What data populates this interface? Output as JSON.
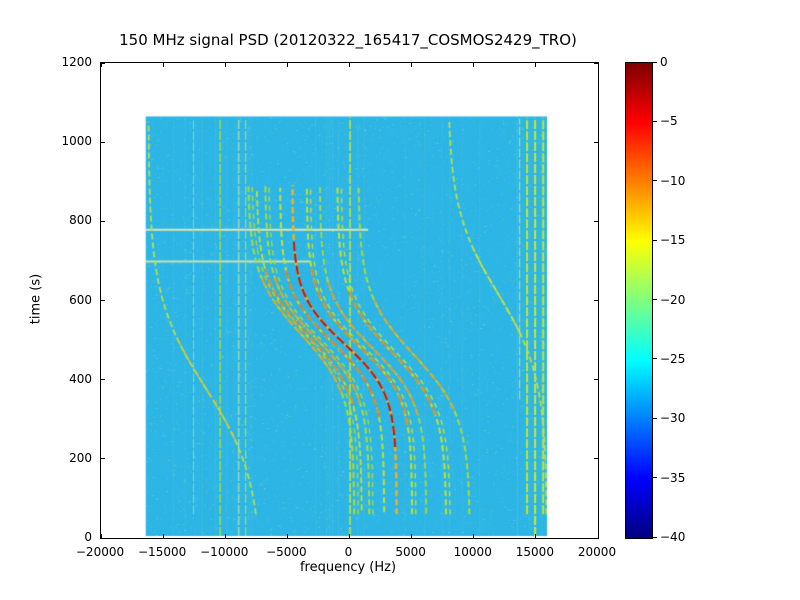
{
  "chart_data": {
    "type": "heatmap",
    "title": "150 MHz signal PSD (20120322_165417_COSMOS2429_TRO)",
    "xlabel": "frequency (Hz)",
    "ylabel": "time (s)",
    "xlim": [
      -20000,
      20000
    ],
    "ylim": [
      0,
      1200
    ],
    "grid": false,
    "xticks": [
      {
        "v": -20000,
        "label": "−20000"
      },
      {
        "v": -15000,
        "label": "−15000"
      },
      {
        "v": -10000,
        "label": "−10000"
      },
      {
        "v": -5000,
        "label": "−5000"
      },
      {
        "v": 0,
        "label": "0"
      },
      {
        "v": 5000,
        "label": "5000"
      },
      {
        "v": 10000,
        "label": "10000"
      },
      {
        "v": 15000,
        "label": "15000"
      },
      {
        "v": 20000,
        "label": "20000"
      }
    ],
    "yticks": [
      {
        "v": 0,
        "label": "0"
      },
      {
        "v": 200,
        "label": "200"
      },
      {
        "v": 400,
        "label": "400"
      },
      {
        "v": 600,
        "label": "600"
      },
      {
        "v": 800,
        "label": "800"
      },
      {
        "v": 1000,
        "label": "1000"
      },
      {
        "v": 1200,
        "label": "1200"
      }
    ],
    "colorbar": {
      "colormap": "jet",
      "min": -40,
      "max": 0,
      "ticks": [
        {
          "v": 0,
          "label": "0"
        },
        {
          "v": -5,
          "label": "−5"
        },
        {
          "v": -10,
          "label": "−10"
        },
        {
          "v": -15,
          "label": "−15"
        },
        {
          "v": -20,
          "label": "−20"
        },
        {
          "v": -25,
          "label": "−25"
        },
        {
          "v": -30,
          "label": "−30"
        },
        {
          "v": -35,
          "label": "−35"
        },
        {
          "v": -40,
          "label": "−40"
        }
      ],
      "jet_stops": [
        "#7f0000",
        "#ff0000",
        "#ff7f00",
        "#ffff00",
        "#7fff7f",
        "#00ffff",
        "#007fff",
        "#0000ff",
        "#00007f"
      ]
    },
    "extent": {
      "freq": [
        -16400,
        15900
      ],
      "time": [
        5,
        1065
      ]
    },
    "background_db": -28,
    "colors": {
      "background": "#2cb5e5",
      "axes_edge": "#000000",
      "figure_bg": "#ffffff"
    },
    "traces": [
      {
        "offset": -3900,
        "amp": 4300,
        "t0": 515,
        "tau": 150,
        "t_range": [
          60,
          890
        ],
        "halo": "#aadc3a",
        "halo_width": 2.0,
        "core": "#f0a014",
        "core_width": 1.6,
        "core_span": 150,
        "pair": true,
        "pair_gap": 320
      },
      {
        "offset": -3250,
        "amp": 4250,
        "t0": 508,
        "tau": 144,
        "t_range": [
          70,
          885
        ],
        "halo": "#c2e22e",
        "halo_width": 1.8,
        "core": "#f08414",
        "core_width": 1.6,
        "core_span": 170,
        "pair": false,
        "pair_gap": 0
      },
      {
        "offset": -2600,
        "amp": 4200,
        "t0": 501,
        "tau": 138,
        "t_range": [
          60,
          890
        ],
        "halo": "#aadc3a",
        "halo_width": 2.0,
        "core": "#f09a14",
        "core_width": 1.6,
        "core_span": 160,
        "pair": true,
        "pair_gap": 300
      },
      {
        "offset": -1400,
        "amp": 4200,
        "t0": 495,
        "tau": 130,
        "t_range": [
          65,
          888
        ],
        "halo": "#c2e22e",
        "halo_width": 2.0,
        "core": "#f07814",
        "core_width": 1.7,
        "core_span": 190,
        "pair": false,
        "pair_gap": 0
      },
      {
        "offset": -400,
        "amp": 4200,
        "t0": 490,
        "tau": 124,
        "t_range": [
          60,
          892
        ],
        "halo": "#f0b020",
        "halo_width": 2.6,
        "core": "#cc1200",
        "core_width": 2.0,
        "core_span": 260,
        "pair": false,
        "pair_gap": 0
      },
      {
        "offset": 800,
        "amp": 4250,
        "t0": 484,
        "tau": 130,
        "t_range": [
          60,
          890
        ],
        "halo": "#c2e22e",
        "halo_width": 2.0,
        "core": "#f08414",
        "core_width": 1.7,
        "core_span": 200,
        "pair": true,
        "pair_gap": 300
      },
      {
        "offset": 1900,
        "amp": 4300,
        "t0": 478,
        "tau": 138,
        "t_range": [
          62,
          886
        ],
        "halo": "#aadc3a",
        "halo_width": 1.8,
        "core": "#f09a14",
        "core_width": 1.6,
        "core_span": 170,
        "pair": false,
        "pair_gap": 0
      },
      {
        "offset": 3400,
        "amp": 4400,
        "t0": 470,
        "tau": 146,
        "t_range": [
          60,
          888
        ],
        "halo": "#c2e22e",
        "halo_width": 2.0,
        "core": "#f08414",
        "core_width": 1.6,
        "core_span": 160,
        "pair": true,
        "pair_gap": 320
      },
      {
        "offset": 5200,
        "amp": 4500,
        "t0": 462,
        "tau": 155,
        "t_range": [
          60,
          884
        ],
        "halo": "#aadc3a",
        "halo_width": 2.0,
        "core": "#f0a014",
        "core_width": 1.5,
        "core_span": 140,
        "pair": false,
        "pair_gap": 0
      },
      {
        "offset": -11600,
        "amp": 4600,
        "t0": 380,
        "tau": 230,
        "t_range": [
          60,
          1055
        ],
        "halo": "#b6e04c",
        "halo_width": 1.8,
        "core": "#e0c81e",
        "core_width": 1.4,
        "core_span": 130,
        "pair": false,
        "pair_gap": 0
      },
      {
        "offset": 11900,
        "amp": 4000,
        "t0": 620,
        "tau": 210,
        "t_range": [
          60,
          1055
        ],
        "halo": "#b6e04c",
        "halo_width": 1.8,
        "core": "#d8e02c",
        "core_width": 1.4,
        "core_span": 110,
        "pair": false,
        "pair_gap": 0
      }
    ],
    "rfi_vertical": [
      {
        "freq": -12600,
        "time": [
          60,
          1060
        ],
        "color": "rgba(150,224,190,0.8)",
        "width": 1.0
      },
      {
        "freq": -10450,
        "time": [
          5,
          1062
        ],
        "color": "#8fdc55",
        "width": 1.6
      },
      {
        "freq": -8950,
        "time": [
          5,
          1062
        ],
        "color": "rgba(190,228,170,0.9)",
        "width": 1.2
      },
      {
        "freq": -8400,
        "time": [
          5,
          1062
        ],
        "color": "#9cdc6e",
        "width": 1.2
      },
      {
        "freq": 0,
        "time": [
          5,
          1063
        ],
        "color": "#c6e42a",
        "width": 1.6
      },
      {
        "freq": 13650,
        "time": [
          350,
          1060
        ],
        "color": "rgba(200,230,120,0.8)",
        "width": 1.2
      },
      {
        "freq": 14250,
        "time": [
          60,
          1062
        ],
        "color": "#c6e42a",
        "width": 2.0
      },
      {
        "freq": 14900,
        "time": [
          5,
          1062
        ],
        "color": "#cfe62a",
        "width": 2.0
      },
      {
        "freq": 15550,
        "time": [
          60,
          1062
        ],
        "color": "#c6e42a",
        "width": 2.0
      }
    ],
    "streaks_horizontal": [
      {
        "time": 780,
        "freq": [
          -16400,
          1500
        ],
        "color": "rgba(232,238,180,0.9)",
        "width": 2
      },
      {
        "time": 700,
        "freq": [
          -16400,
          -3200
        ],
        "color": "rgba(225,235,170,0.85)",
        "width": 2
      }
    ]
  }
}
